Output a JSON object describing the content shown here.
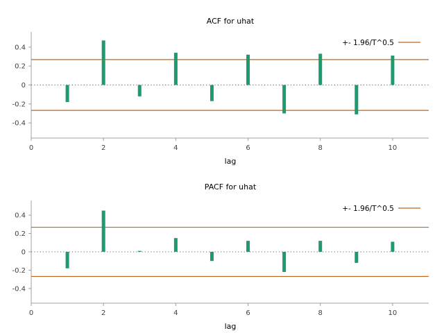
{
  "colors": {
    "bar": "#1f9a6e",
    "band": "#c0651b",
    "axis": "#a0a0a0"
  },
  "chart_data": [
    {
      "type": "bar",
      "title": "ACF for uhat",
      "xlabel": "lag",
      "ylabel": "",
      "x": [
        1,
        2,
        3,
        4,
        5,
        6,
        7,
        8,
        9,
        10
      ],
      "values": [
        -0.18,
        0.47,
        -0.12,
        0.34,
        -0.17,
        0.32,
        -0.3,
        0.33,
        -0.31,
        0.31
      ],
      "xlim": [
        0,
        11
      ],
      "ylim": [
        -0.56,
        0.56
      ],
      "xticks": [
        "0",
        "2",
        "4",
        "6",
        "8",
        "10"
      ],
      "yticks": [
        "0.4",
        "0.2",
        "0",
        "-0.2",
        "-0.4"
      ],
      "band": 0.268,
      "legend": "+- 1.96/T^0.5",
      "legend_position": "top-right",
      "grid": false
    },
    {
      "type": "bar",
      "title": "PACF for uhat",
      "xlabel": "lag",
      "ylabel": "",
      "x": [
        1,
        2,
        3,
        4,
        5,
        6,
        7,
        8,
        9,
        10
      ],
      "values": [
        -0.18,
        0.45,
        0.01,
        0.15,
        -0.1,
        0.12,
        -0.22,
        0.12,
        -0.12,
        0.11
      ],
      "xlim": [
        0,
        11
      ],
      "ylim": [
        -0.56,
        0.56
      ],
      "xticks": [
        "0",
        "2",
        "4",
        "6",
        "8",
        "10"
      ],
      "yticks": [
        "0.4",
        "0.2",
        "0",
        "-0.2",
        "-0.4"
      ],
      "band": 0.268,
      "legend": "+- 1.96/T^0.5",
      "legend_position": "top-right",
      "grid": false
    }
  ]
}
